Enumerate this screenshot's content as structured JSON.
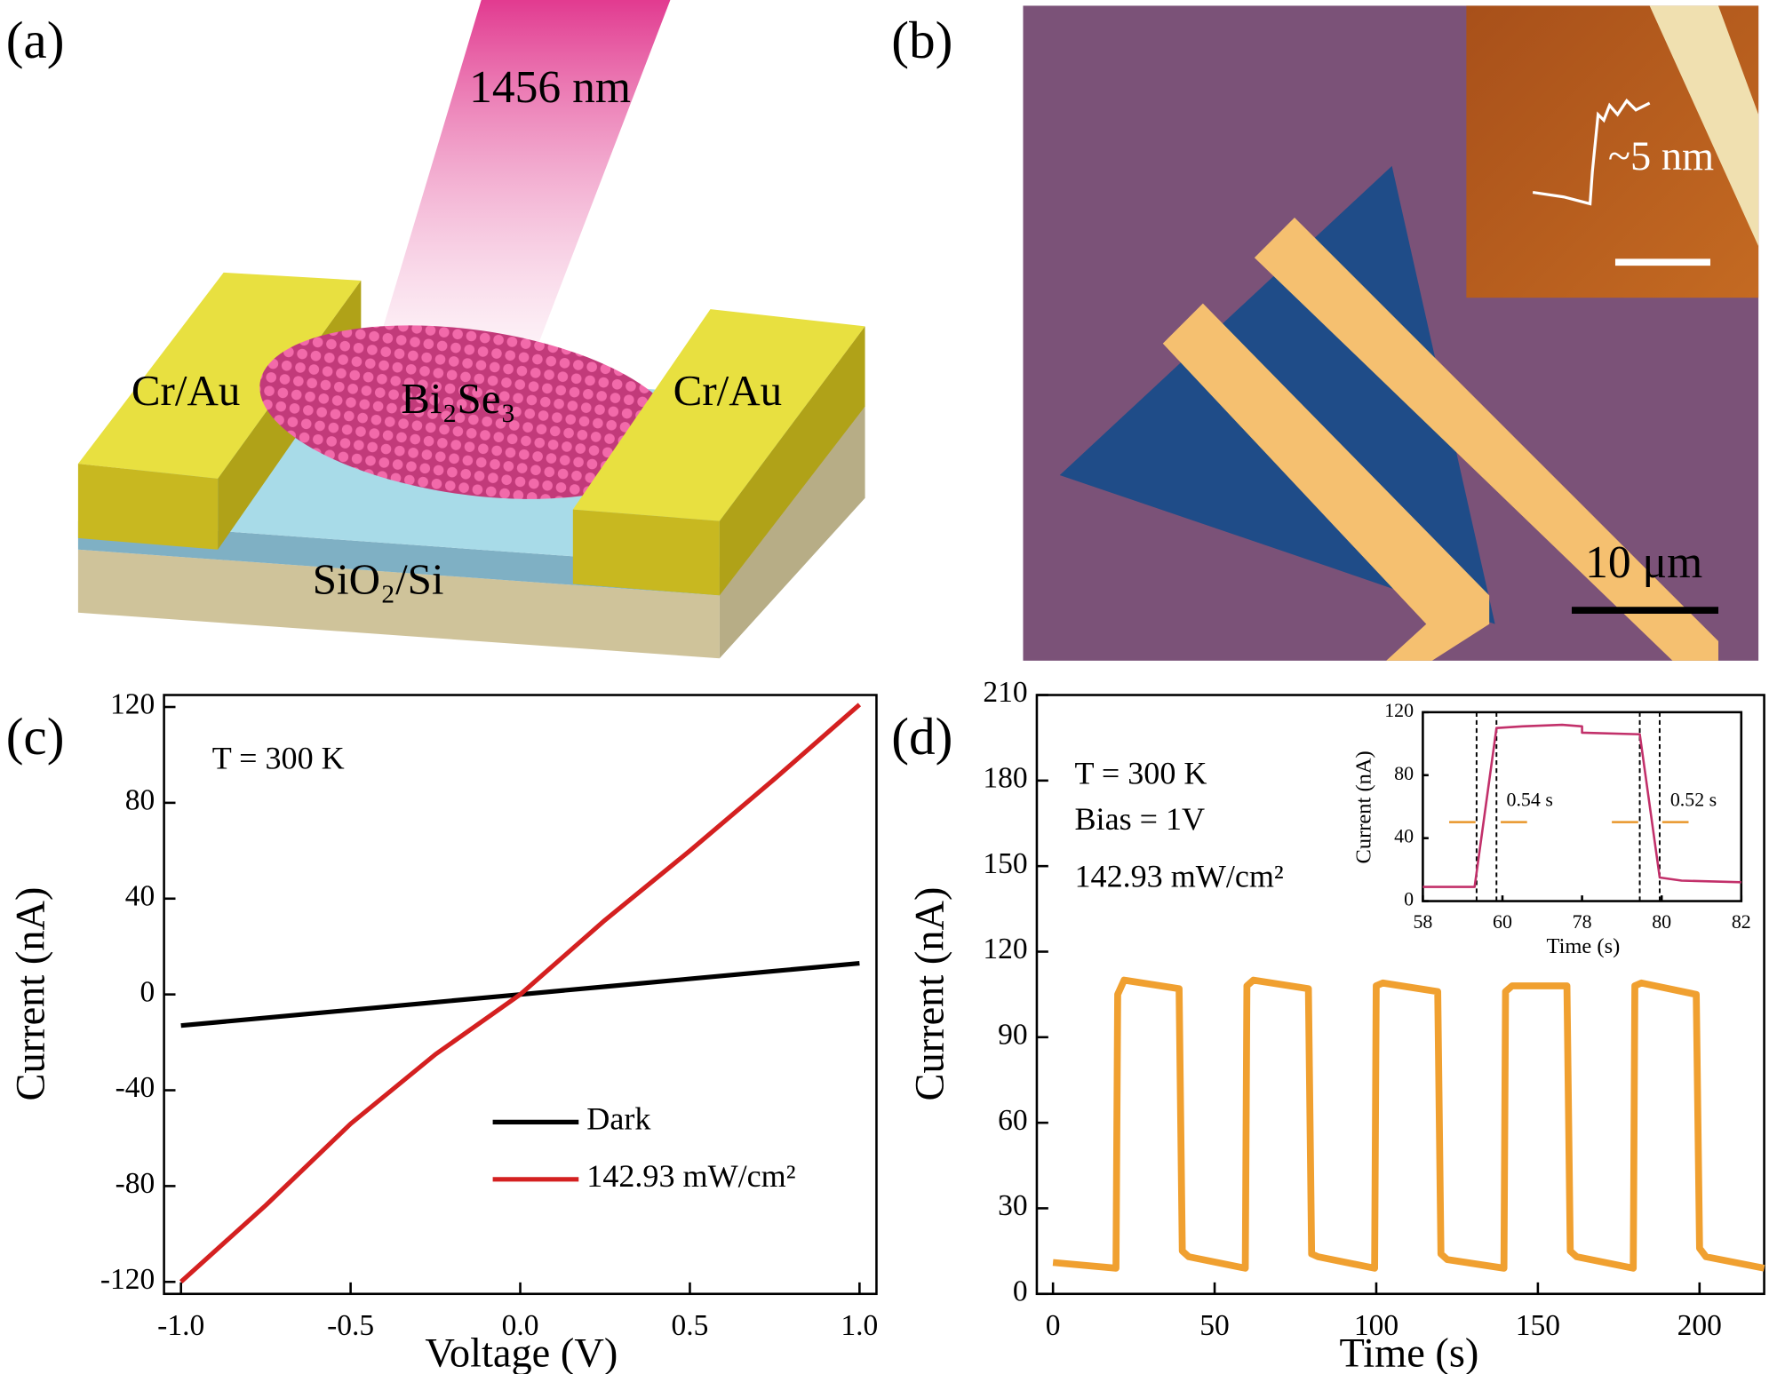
{
  "figure": {
    "panel_labels": [
      "(a)",
      "(b)",
      "(c)",
      "(d)"
    ]
  },
  "panel_a": {
    "beam_label": "1456 nm",
    "labels": [
      "Cr/Au",
      "Bi₂Se₃",
      "Cr/Au",
      "SiO₂/Si"
    ]
  },
  "panel_b": {
    "inset_label": "~5 nm",
    "scale_bar": "10 μm"
  },
  "chart_data": [
    {
      "type": "line",
      "xlabel": "Voltage (V)",
      "ylabel": "Current (nA)",
      "annotations": [
        "T = 300 K"
      ],
      "xlim": [
        -1.05,
        1.05
      ],
      "ylim": [
        -125,
        125
      ],
      "xticks": [
        {
          "value": -1,
          "label": "-1.0"
        },
        -0.5,
        {
          "value": 0,
          "label": "0.0"
        },
        0.5,
        {
          "value": 1,
          "label": "1.0"
        }
      ],
      "yticks": [
        -120,
        -80,
        -40,
        0,
        40,
        80,
        120
      ],
      "x": [
        -1,
        -0.75,
        -0.5,
        -0.25,
        0,
        0.25,
        0.5,
        0.75,
        1
      ],
      "series": [
        {
          "name": "Dark",
          "color": "#000000",
          "values": [
            -13,
            -9.75,
            -6.5,
            -3.25,
            0,
            3.25,
            6.5,
            9.75,
            13
          ]
        },
        {
          "name": "142.93 mW/cm²",
          "color": "#d42020",
          "values": [
            -120,
            -88,
            -54,
            -25,
            0,
            31,
            60,
            90,
            121
          ]
        }
      ]
    },
    {
      "type": "line",
      "xlabel": "Time (s)",
      "ylabel": "Current (nA)",
      "annotations": [
        "T = 300 K",
        "Bias = 1V",
        "142.93 mW/cm²"
      ],
      "xlim": [
        -5,
        220
      ],
      "ylim": [
        0,
        210
      ],
      "xticks": [
        0,
        50,
        100,
        150,
        200
      ],
      "yticks": [
        0,
        30,
        60,
        90,
        120,
        150,
        180,
        210
      ],
      "x": [
        0,
        19.5,
        20,
        22,
        39,
        40,
        42,
        59.5,
        60,
        62,
        79,
        80,
        82,
        99.5,
        100,
        102,
        119,
        120,
        122,
        139.5,
        140,
        142,
        159,
        160,
        162,
        179.5,
        180,
        182,
        199,
        200,
        202,
        220
      ],
      "series": [
        {
          "name": null,
          "color": "#f0a030",
          "values": [
            11,
            9,
            105,
            110,
            107,
            15,
            13,
            9,
            108,
            110,
            107,
            14,
            13,
            9,
            108,
            109,
            106,
            14,
            12,
            9,
            106,
            108,
            108,
            15,
            13,
            9,
            108,
            109,
            105,
            16,
            13,
            9
          ]
        }
      ]
    },
    {
      "type": "line",
      "xlabel": "Time (s)",
      "ylabel": "Current (nA)",
      "annotations": [
        "0.54 s",
        "0.52 s"
      ],
      "xlim": [
        58,
        82
      ],
      "xbreak": [
        62,
        78
      ],
      "ylim": [
        0,
        120
      ],
      "xticks": [
        58,
        60,
        78,
        80,
        82
      ],
      "yticks": [
        0,
        40,
        80,
        120
      ],
      "dashed_lines": [
        59.35,
        59.85,
        79.45,
        79.95
      ],
      "x": [
        58,
        59.3,
        59.85,
        60.5,
        61.5,
        62,
        78,
        79.45,
        79.95,
        80.5,
        82
      ],
      "series": [
        {
          "name": null,
          "color": "#c2306a",
          "values": [
            9,
            9,
            110,
            111,
            112,
            111,
            107,
            106,
            15,
            13,
            12
          ]
        }
      ]
    }
  ]
}
